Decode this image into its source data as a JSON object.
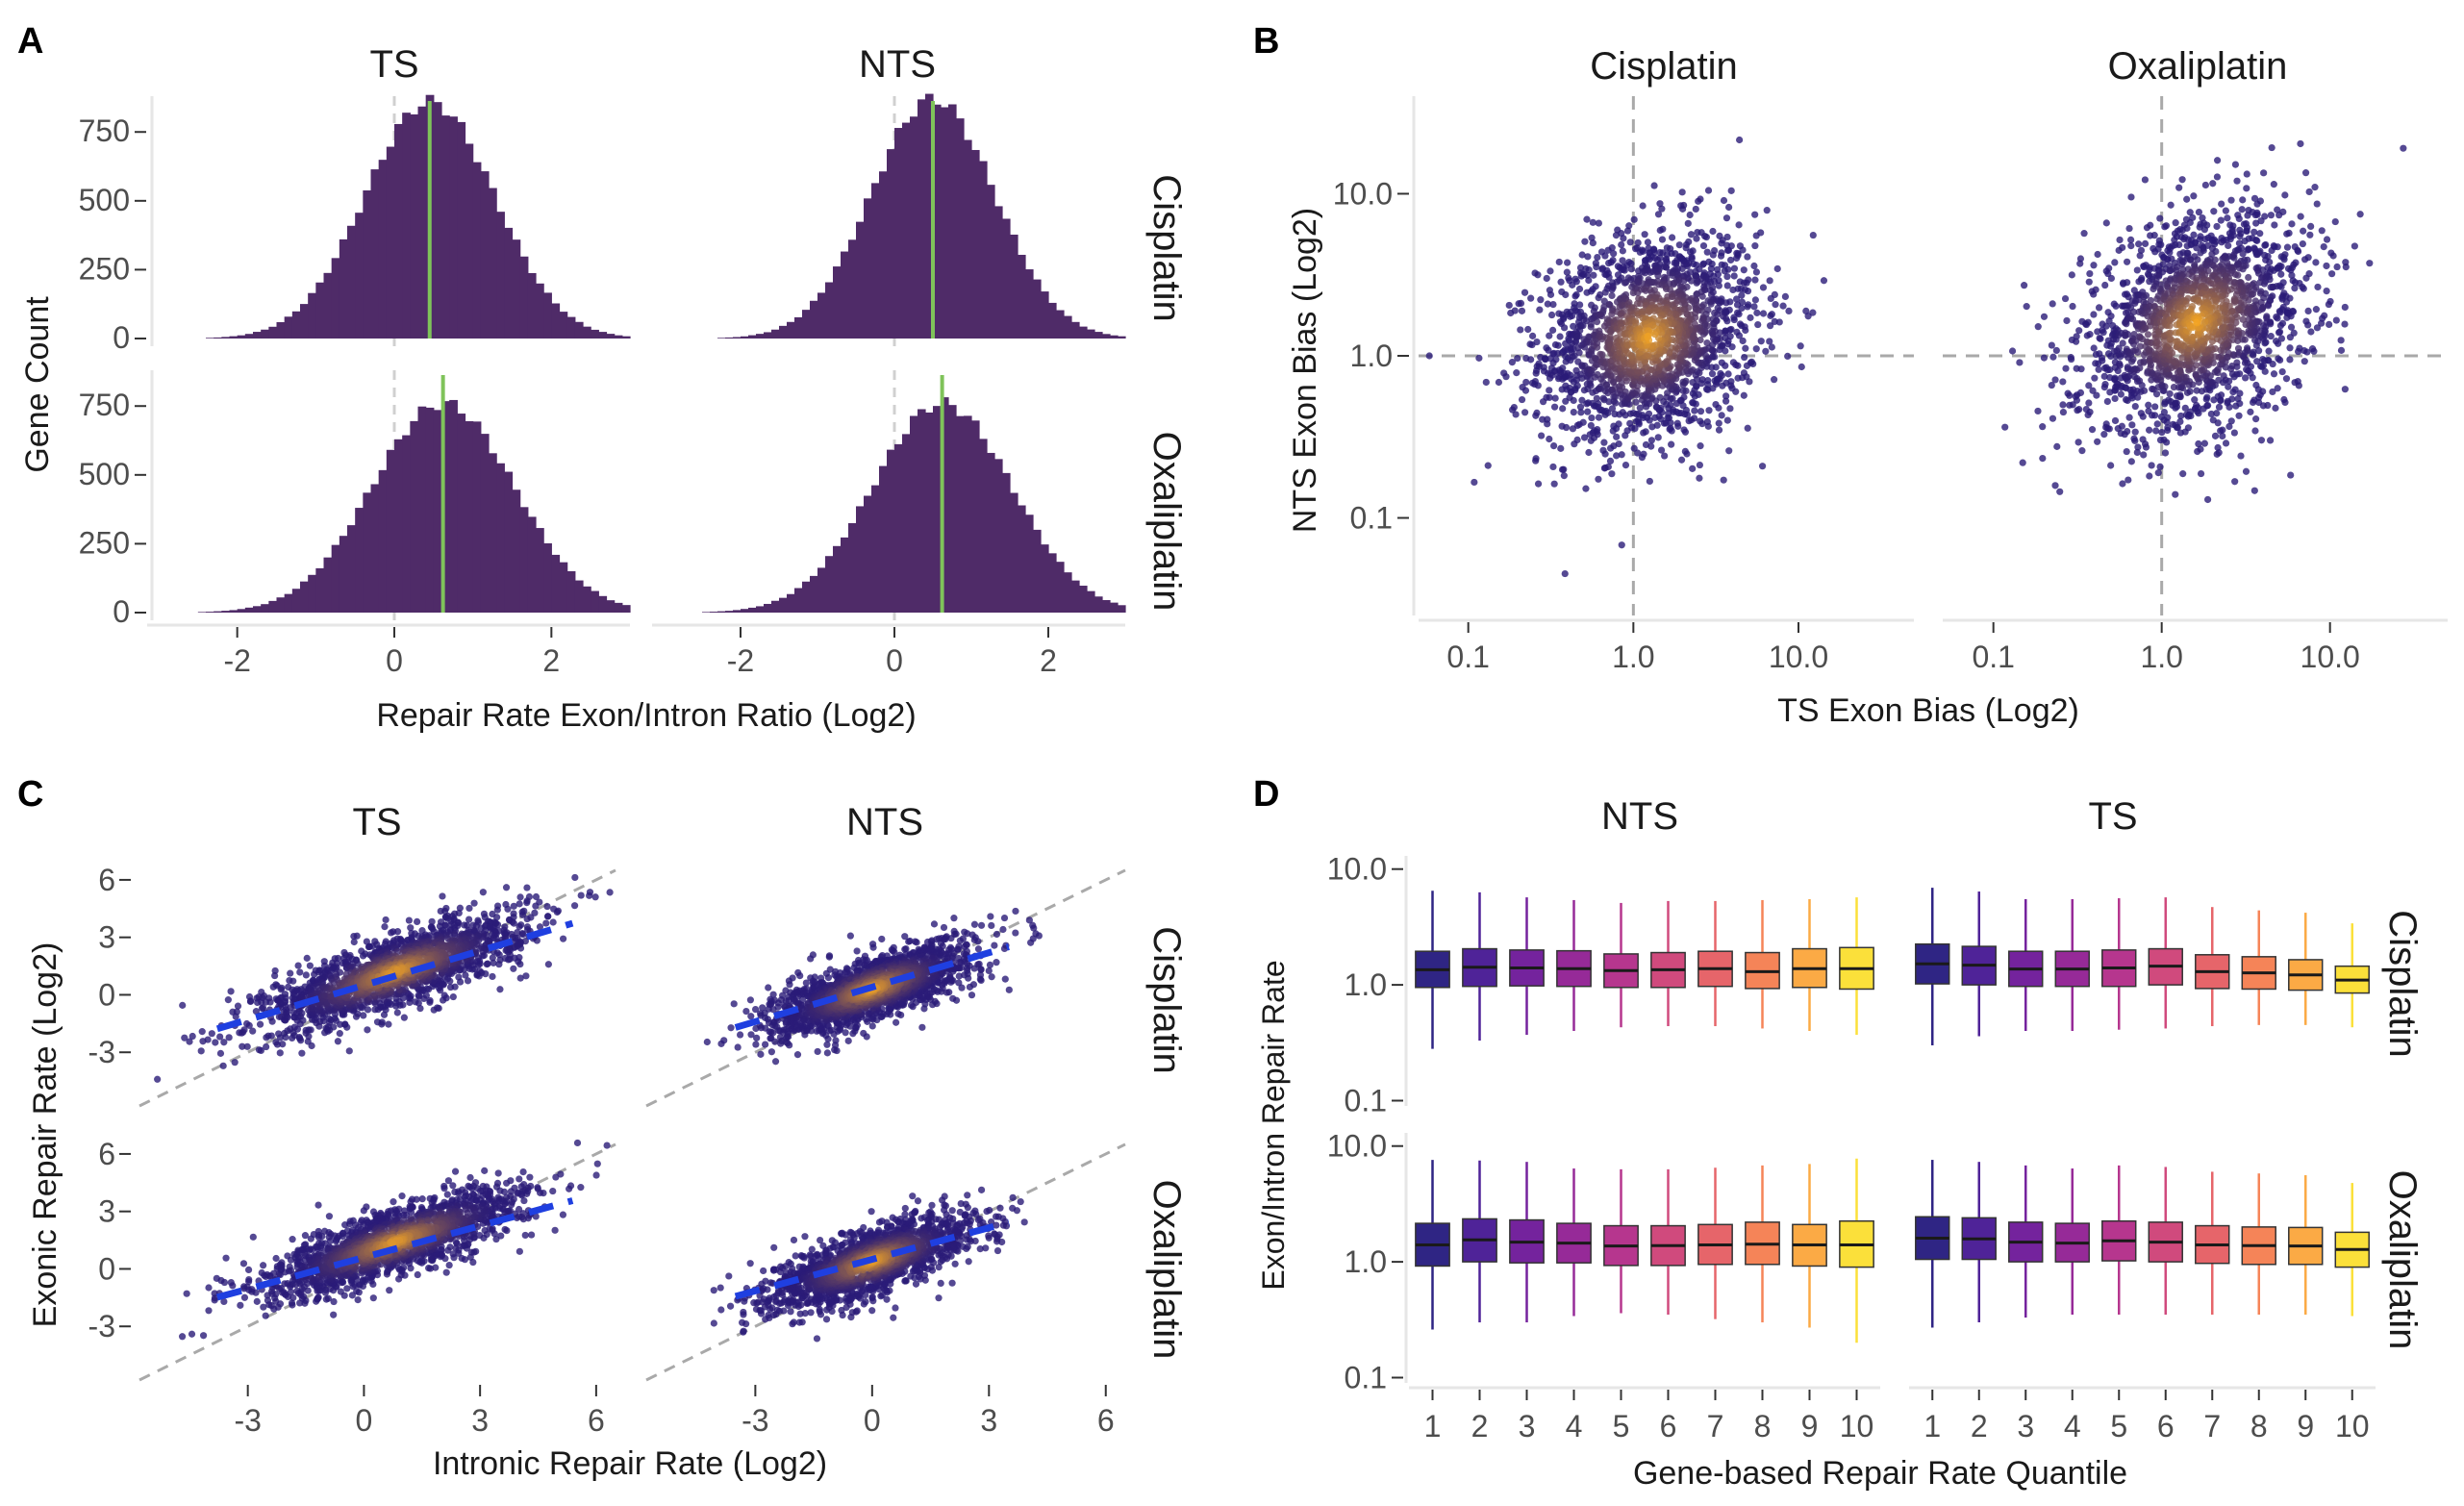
{
  "panels": {
    "A": {
      "letter": "A",
      "col_titles": [
        "TS",
        "NTS"
      ],
      "row_titles": [
        "Cisplatin",
        "Oxaliplatin"
      ],
      "xlabel": "Repair Rate Exon/Intron Ratio (Log2)",
      "ylabel": "Gene Count"
    },
    "B": {
      "letter": "B",
      "col_titles": [
        "Cisplatin",
        "Oxaliplatin"
      ],
      "xlabel": "TS Exon Bias (Log2)",
      "ylabel": "NTS Exon Bias (Log2)"
    },
    "C": {
      "letter": "C",
      "col_titles": [
        "TS",
        "NTS"
      ],
      "row_titles": [
        "Cisplatin",
        "Oxaliplatin"
      ],
      "xlabel": "Intronic Repair Rate (Log2)",
      "ylabel": "Exonic Repair Rate (Log2)"
    },
    "D": {
      "letter": "D",
      "col_titles": [
        "NTS",
        "TS"
      ],
      "row_titles": [
        "Cisplatin",
        "Oxaliplatin"
      ],
      "xlabel": "Gene-based Repair Rate Quantile",
      "ylabel": "Exon/Intron Repair Rate"
    }
  },
  "colors": {
    "bar_fill": "#4f2b68",
    "median_line": "#7fc35a",
    "zero_line": "#d0d0d0",
    "ref_line": "#a9a9a9",
    "fit_line": "#1f3fe0",
    "point_low": "#2a1b78",
    "point_high": "#f5a623",
    "quantile_palette": [
      "#2f2584",
      "#4f2398",
      "#74239d",
      "#962a98",
      "#b6368e",
      "#d04a7d",
      "#e6656a",
      "#f58458",
      "#fbaa45",
      "#fbe03a"
    ]
  },
  "chart_data": [
    {
      "panel": "A",
      "type": "bar",
      "subtype": "histogram",
      "xlim": [
        -3,
        3
      ],
      "ylim": [
        0,
        880
      ],
      "xticks": [
        -2,
        0,
        2
      ],
      "yticks": [
        0,
        250,
        500,
        750
      ],
      "reference_lines": [
        {
          "axis": "x",
          "value": 0,
          "style": "dashed"
        }
      ],
      "facets": [
        {
          "col": "TS",
          "row": "Cisplatin",
          "median": 0.45,
          "mean": 0.45,
          "sd": 0.82,
          "peak": 860
        },
        {
          "col": "NTS",
          "row": "Cisplatin",
          "median": 0.5,
          "mean": 0.5,
          "sd": 0.8,
          "peak": 870
        },
        {
          "col": "TS",
          "row": "Oxaliplatin",
          "median": 0.62,
          "mean": 0.62,
          "sd": 0.9,
          "peak": 760
        },
        {
          "col": "NTS",
          "row": "Oxaliplatin",
          "median": 0.62,
          "mean": 0.62,
          "sd": 0.9,
          "peak": 760
        }
      ]
    },
    {
      "panel": "B",
      "type": "scatter",
      "scale": "log",
      "xlim": [
        0.05,
        50
      ],
      "ylim": [
        0.025,
        40
      ],
      "xticks": [
        "0.1",
        "1.0",
        "10.0"
      ],
      "yticks": [
        "0.1",
        "1.0",
        "10.0"
      ],
      "reference_lines": [
        {
          "axis": "x",
          "value": 1,
          "style": "dashed"
        },
        {
          "axis": "y",
          "value": 1,
          "style": "dashed"
        }
      ],
      "facets": [
        {
          "col": "Cisplatin",
          "center_x": 1.25,
          "center_y": 1.3,
          "spread": 0.33,
          "corr": 0.2
        },
        {
          "col": "Oxaliplatin",
          "center_x": 1.6,
          "center_y": 1.6,
          "spread": 0.34,
          "corr": 0.3
        }
      ]
    },
    {
      "panel": "C",
      "type": "scatter",
      "xlim": [
        -5.8,
        6.5
      ],
      "ylim": [
        -5.8,
        7
      ],
      "xticks": [
        "-3",
        "0",
        "3",
        "6"
      ],
      "yticks": [
        "-3",
        "0",
        "3",
        "6"
      ],
      "reference_lines": [
        {
          "type": "identity",
          "slope": 1,
          "intercept": 0,
          "style": "dashed"
        }
      ],
      "facets": [
        {
          "col": "TS",
          "row": "Cisplatin",
          "center_x": 0.8,
          "center_y": 1.2,
          "sd_x": 1.7,
          "sd_y": 1.5,
          "corr": 0.78,
          "fit_slope": 0.6,
          "fit_intercept": 0.5
        },
        {
          "col": "NTS",
          "row": "Cisplatin",
          "center_x": 0.0,
          "center_y": 0.3,
          "sd_x": 1.3,
          "sd_y": 1.2,
          "corr": 0.72,
          "fit_slope": 0.6,
          "fit_intercept": 0.4
        },
        {
          "col": "TS",
          "row": "Oxaliplatin",
          "center_x": 0.8,
          "center_y": 1.4,
          "sd_x": 1.7,
          "sd_y": 1.4,
          "corr": 0.8,
          "fit_slope": 0.55,
          "fit_intercept": 0.6
        },
        {
          "col": "NTS",
          "row": "Oxaliplatin",
          "center_x": 0.0,
          "center_y": 0.4,
          "sd_x": 1.3,
          "sd_y": 1.2,
          "corr": 0.72,
          "fit_slope": 0.55,
          "fit_intercept": 0.5
        }
      ]
    },
    {
      "panel": "D",
      "type": "box",
      "scale": "log",
      "ylim": [
        0.09,
        13
      ],
      "yticks": [
        "0.1",
        "1.0",
        "10.0"
      ],
      "categories": [
        "1",
        "2",
        "3",
        "4",
        "5",
        "6",
        "7",
        "8",
        "9",
        "10"
      ],
      "series": [
        {
          "name": "NTS",
          "row": "Cisplatin",
          "boxes": [
            {
              "q1": 0.95,
              "median": 1.35,
              "q3": 1.95,
              "low": 0.28,
              "high": 6.5
            },
            {
              "q1": 0.97,
              "median": 1.42,
              "q3": 2.05,
              "low": 0.33,
              "high": 6.3
            },
            {
              "q1": 0.98,
              "median": 1.4,
              "q3": 2.0,
              "low": 0.37,
              "high": 5.7
            },
            {
              "q1": 0.97,
              "median": 1.38,
              "q3": 1.97,
              "low": 0.4,
              "high": 5.4
            },
            {
              "q1": 0.95,
              "median": 1.33,
              "q3": 1.85,
              "low": 0.43,
              "high": 5.1
            },
            {
              "q1": 0.95,
              "median": 1.35,
              "q3": 1.9,
              "low": 0.44,
              "high": 5.3
            },
            {
              "q1": 0.97,
              "median": 1.38,
              "q3": 1.95,
              "low": 0.44,
              "high": 5.3
            },
            {
              "q1": 0.93,
              "median": 1.3,
              "q3": 1.9,
              "low": 0.42,
              "high": 5.4
            },
            {
              "q1": 0.95,
              "median": 1.38,
              "q3": 2.05,
              "low": 0.4,
              "high": 5.5
            },
            {
              "q1": 0.92,
              "median": 1.38,
              "q3": 2.1,
              "low": 0.37,
              "high": 5.7
            }
          ]
        },
        {
          "name": "TS",
          "row": "Cisplatin",
          "boxes": [
            {
              "q1": 1.02,
              "median": 1.52,
              "q3": 2.25,
              "low": 0.3,
              "high": 6.9
            },
            {
              "q1": 1.0,
              "median": 1.48,
              "q3": 2.15,
              "low": 0.36,
              "high": 6.4
            },
            {
              "q1": 0.97,
              "median": 1.37,
              "q3": 1.95,
              "low": 0.4,
              "high": 5.5
            },
            {
              "q1": 0.97,
              "median": 1.37,
              "q3": 1.95,
              "low": 0.4,
              "high": 5.5
            },
            {
              "q1": 0.97,
              "median": 1.4,
              "q3": 2.0,
              "low": 0.41,
              "high": 5.6
            },
            {
              "q1": 1.0,
              "median": 1.45,
              "q3": 2.05,
              "low": 0.42,
              "high": 5.7
            },
            {
              "q1": 0.93,
              "median": 1.3,
              "q3": 1.82,
              "low": 0.44,
              "high": 4.7
            },
            {
              "q1": 0.92,
              "median": 1.27,
              "q3": 1.75,
              "low": 0.45,
              "high": 4.4
            },
            {
              "q1": 0.9,
              "median": 1.22,
              "q3": 1.65,
              "low": 0.45,
              "high": 4.2
            },
            {
              "q1": 0.85,
              "median": 1.1,
              "q3": 1.45,
              "low": 0.43,
              "high": 3.4
            }
          ]
        },
        {
          "name": "NTS",
          "row": "Oxaliplatin",
          "boxes": [
            {
              "q1": 0.92,
              "median": 1.4,
              "q3": 2.15,
              "low": 0.26,
              "high": 7.6
            },
            {
              "q1": 1.0,
              "median": 1.55,
              "q3": 2.35,
              "low": 0.3,
              "high": 7.5
            },
            {
              "q1": 0.98,
              "median": 1.48,
              "q3": 2.3,
              "low": 0.3,
              "high": 7.3
            },
            {
              "q1": 0.98,
              "median": 1.45,
              "q3": 2.15,
              "low": 0.34,
              "high": 6.4
            },
            {
              "q1": 0.93,
              "median": 1.37,
              "q3": 2.05,
              "low": 0.36,
              "high": 6.3
            },
            {
              "q1": 0.93,
              "median": 1.38,
              "q3": 2.05,
              "low": 0.35,
              "high": 6.3
            },
            {
              "q1": 0.95,
              "median": 1.4,
              "q3": 2.1,
              "low": 0.32,
              "high": 6.5
            },
            {
              "q1": 0.95,
              "median": 1.42,
              "q3": 2.2,
              "low": 0.3,
              "high": 6.8
            },
            {
              "q1": 0.92,
              "median": 1.4,
              "q3": 2.1,
              "low": 0.27,
              "high": 7.0
            },
            {
              "q1": 0.9,
              "median": 1.4,
              "q3": 2.25,
              "low": 0.2,
              "high": 7.8
            }
          ]
        },
        {
          "name": "TS",
          "row": "Oxaliplatin",
          "boxes": [
            {
              "q1": 1.05,
              "median": 1.6,
              "q3": 2.45,
              "low": 0.27,
              "high": 7.6
            },
            {
              "q1": 1.05,
              "median": 1.58,
              "q3": 2.4,
              "low": 0.3,
              "high": 7.3
            },
            {
              "q1": 1.0,
              "median": 1.48,
              "q3": 2.2,
              "low": 0.33,
              "high": 6.8
            },
            {
              "q1": 1.0,
              "median": 1.45,
              "q3": 2.15,
              "low": 0.35,
              "high": 6.4
            },
            {
              "q1": 1.02,
              "median": 1.52,
              "q3": 2.25,
              "low": 0.35,
              "high": 6.8
            },
            {
              "q1": 1.0,
              "median": 1.48,
              "q3": 2.2,
              "low": 0.35,
              "high": 6.6
            },
            {
              "q1": 0.97,
              "median": 1.4,
              "q3": 2.05,
              "low": 0.35,
              "high": 6.0
            },
            {
              "q1": 0.95,
              "median": 1.38,
              "q3": 2.0,
              "low": 0.35,
              "high": 5.8
            },
            {
              "q1": 0.95,
              "median": 1.37,
              "q3": 1.98,
              "low": 0.35,
              "high": 5.6
            },
            {
              "q1": 0.9,
              "median": 1.28,
              "q3": 1.8,
              "low": 0.34,
              "high": 4.8
            }
          ]
        }
      ]
    }
  ]
}
